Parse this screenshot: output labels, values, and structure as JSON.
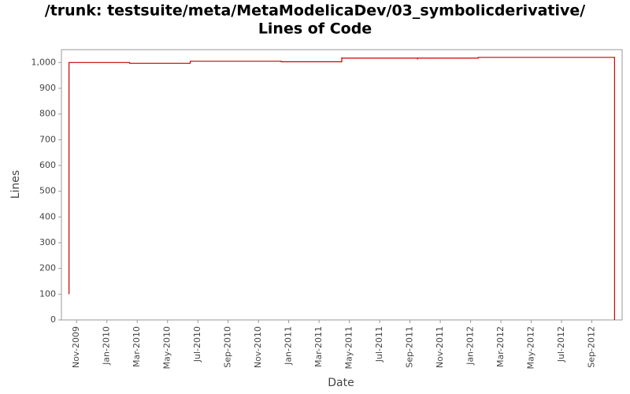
{
  "chart_data": {
    "type": "step",
    "title": "/trunk: testsuite/meta/MetaModelicaDev/03_symbolicderivative/",
    "subtitle": "Lines of Code",
    "x_label": "Date",
    "y_label": "Lines",
    "series": [
      {
        "name": "Lines of Code",
        "color": "#cc0000",
        "x": [
          "2009-10",
          "2009-10",
          "2009-10",
          "2009-10",
          "2010-02",
          "2010-06",
          "2010-12",
          "2011-04",
          "2011-04",
          "2011-09",
          "2011-09",
          "2012-01",
          "2012-10"
        ],
        "values": [
          100,
          650,
          970,
          1000,
          997,
          1005,
          1003,
          1020,
          1017,
          1012,
          1017,
          1020,
          0
        ]
      }
    ],
    "xlim": [
      "2009-10",
      "2012-10"
    ],
    "xticks": [
      {
        "value": "2009-11",
        "label": "Nov-2009"
      },
      {
        "value": "2010-01",
        "label": "Jan-2010"
      },
      {
        "value": "2010-03",
        "label": "Mar-2010"
      },
      {
        "value": "2010-05",
        "label": "May-2010"
      },
      {
        "value": "2010-07",
        "label": "Jul-2010"
      },
      {
        "value": "2010-09",
        "label": "Sep-2010"
      },
      {
        "value": "2010-11",
        "label": "Nov-2010"
      },
      {
        "value": "2011-01",
        "label": "Jan-2011"
      },
      {
        "value": "2011-03",
        "label": "Mar-2011"
      },
      {
        "value": "2011-05",
        "label": "May-2011"
      },
      {
        "value": "2011-07",
        "label": "Jul-2011"
      },
      {
        "value": "2011-09",
        "label": "Sep-2011"
      },
      {
        "value": "2011-11",
        "label": "Nov-2011"
      },
      {
        "value": "2012-01",
        "label": "Jan-2012"
      },
      {
        "value": "2012-03",
        "label": "Mar-2012"
      },
      {
        "value": "2012-05",
        "label": "May-2012"
      },
      {
        "value": "2012-07",
        "label": "Jul-2012"
      },
      {
        "value": "2012-09",
        "label": "Sep-2012"
      }
    ],
    "ylim": [
      0,
      1050
    ],
    "yticks": [
      0,
      100,
      200,
      300,
      400,
      500,
      600,
      700,
      800,
      900,
      {
        "value": 1000,
        "label": "1,000"
      }
    ],
    "grid": false
  }
}
